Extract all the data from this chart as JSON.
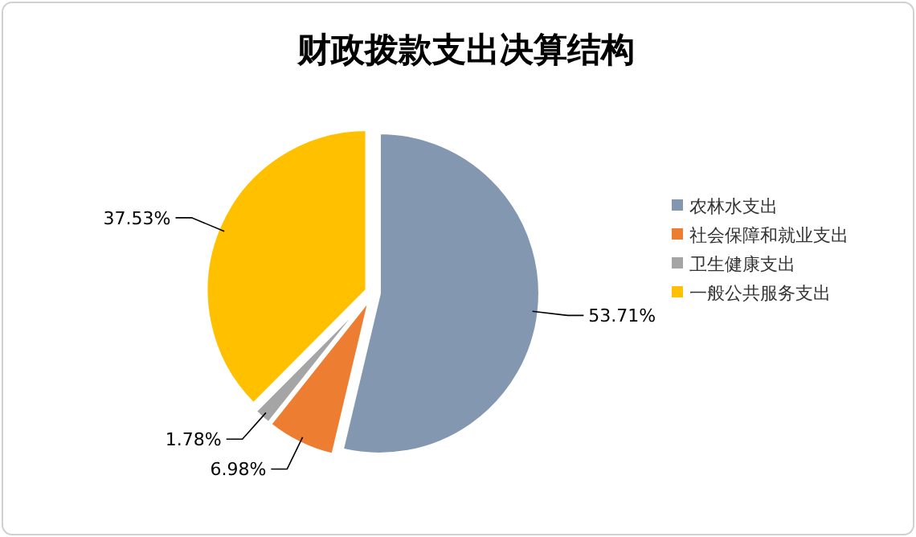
{
  "chart_data": {
    "type": "pie",
    "title": "财政拨款支出决算结构",
    "categories": [
      "农林水支出",
      "社会保障和就业支出",
      "卫生健康支出",
      "一般公共服务支出"
    ],
    "values": [
      53.71,
      6.98,
      1.78,
      37.53
    ],
    "colors": [
      "#8497b0",
      "#ed7d31",
      "#a5a5a5",
      "#ffc000"
    ],
    "value_labels": [
      "53.71%",
      "6.98%",
      "1.78%",
      "37.53%"
    ],
    "legend": "right"
  }
}
